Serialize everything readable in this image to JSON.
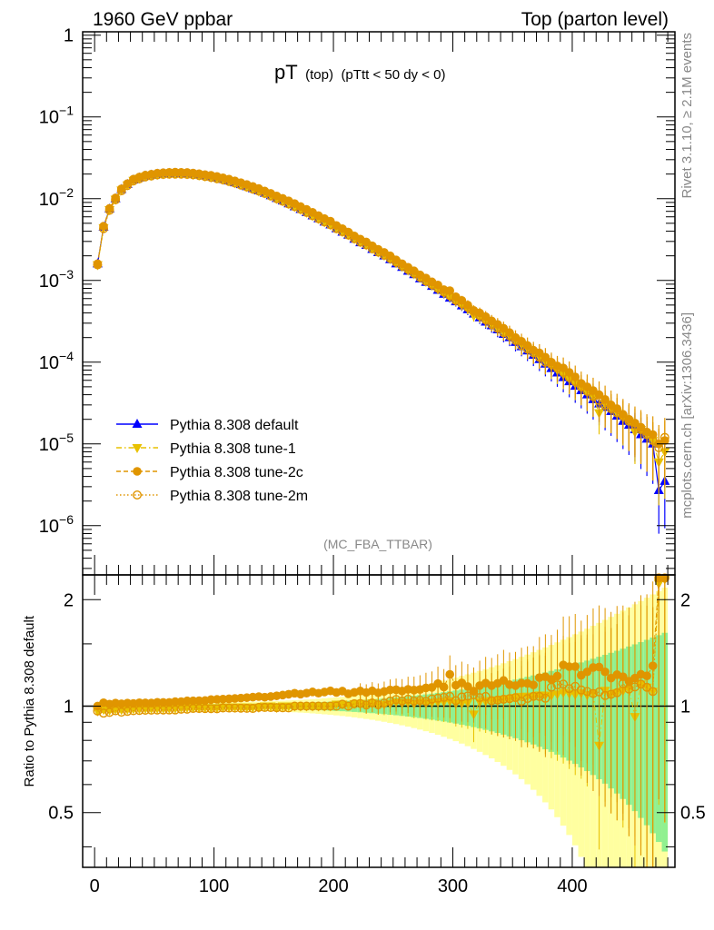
{
  "header": {
    "left": "1960 GeV ppbar",
    "right": "Top (parton level)"
  },
  "side_texts": {
    "rivet": "Rivet 3.1.10, ≥ 2.1M events",
    "mcplots": "mcplots.cern.ch [arXiv:1306.3436]"
  },
  "chart_data": [
    {
      "type": "scatter",
      "panel": "main",
      "title": {
        "main": "pT",
        "sub1": "(top)",
        "sub2": "(pTtt < 50 dy < 0)"
      },
      "watermark": "(MC_FBA_TTBAR)",
      "xlim": [
        -10,
        486
      ],
      "ylim": [
        2.5e-07,
        1.1
      ],
      "yscale": "log",
      "y_ticks": [
        {
          "value": 1,
          "label": "1"
        },
        {
          "value": 0.1,
          "base": "10",
          "exp": "−1"
        },
        {
          "value": 0.01,
          "base": "10",
          "exp": "−2"
        },
        {
          "value": 0.001,
          "base": "10",
          "exp": "−3"
        },
        {
          "value": 0.0001,
          "base": "10",
          "exp": "−4"
        },
        {
          "value": 1e-05,
          "base": "10",
          "exp": "−5"
        },
        {
          "value": 1e-06,
          "base": "10",
          "exp": "−6"
        }
      ],
      "legend_position": "bottom-left",
      "shape": {
        "x_start": 2.5,
        "x_step": 5,
        "n_bins": 96,
        "peak_x": 70,
        "peak_y": 0.0205
      },
      "x": [
        2.5,
        7.5,
        12.5,
        17.5,
        22.5,
        27.5,
        32.5,
        37.5,
        42.5,
        47.5,
        52.5,
        57.5,
        62.5,
        67.5,
        72.5,
        77.5,
        82.5,
        87.5,
        92.5,
        97.5,
        102.5,
        107.5,
        112.5,
        117.5,
        122.5,
        127.5,
        132.5,
        137.5,
        142.5,
        147.5,
        152.5,
        157.5,
        162.5,
        167.5,
        172.5,
        177.5,
        182.5,
        187.5,
        192.5,
        197.5,
        202.5,
        207.5,
        212.5,
        217.5,
        222.5,
        227.5,
        232.5,
        237.5,
        242.5,
        247.5,
        252.5,
        257.5,
        262.5,
        267.5,
        272.5,
        277.5,
        282.5,
        287.5,
        292.5,
        297.5,
        302.5,
        307.5,
        312.5,
        317.5,
        322.5,
        327.5,
        332.5,
        337.5,
        342.5,
        347.5,
        352.5,
        357.5,
        362.5,
        367.5,
        372.5,
        377.5,
        382.5,
        387.5,
        392.5,
        397.5,
        402.5,
        407.5,
        412.5,
        417.5,
        422.5,
        427.5,
        432.5,
        437.5,
        442.5,
        447.5,
        452.5,
        457.5,
        462.5,
        467.5,
        472.5,
        477.5
      ],
      "series": [
        {
          "name": "Pythia 8.308 default",
          "color": "#0000ff",
          "marker": "triangle-up",
          "line": "solid",
          "y": [
            0.0016,
            0.0045,
            0.0075,
            0.01,
            0.013,
            0.015,
            0.017,
            0.018,
            0.019,
            0.0195,
            0.02,
            0.0203,
            0.0205,
            0.0205,
            0.0204,
            0.0202,
            0.0199,
            0.0195,
            0.019,
            0.0185,
            0.0179,
            0.0172,
            0.0165,
            0.0157,
            0.0149,
            0.0141,
            0.0133,
            0.0125,
            0.0117,
            0.0109,
            0.0101,
            0.0094,
            0.0087,
            0.008,
            0.0074,
            0.0068,
            0.0062,
            0.0057,
            0.0052,
            0.0048,
            0.0043,
            0.0039,
            0.0036,
            0.0032,
            0.0029,
            0.0027,
            0.0024,
            0.0022,
            0.002,
            0.0018,
            0.0016,
            0.00145,
            0.0013,
            0.00118,
            0.00105,
            0.00095,
            0.00085,
            0.00076,
            0.00068,
            0.00061,
            0.00055,
            0.00049,
            0.00044,
            0.00039,
            0.00035,
            0.00031,
            0.00028,
            0.00025,
            0.00022,
            0.0002,
            0.000175,
            0.000155,
            0.000138,
            0.000122,
            0.000108,
            9.5e-05,
            8.4e-05,
            7.4e-05,
            6.5e-05,
            5.8e-05,
            5.1e-05,
            4.5e-05,
            4e-05,
            3.5e-05,
            3.1e-05,
            2.8e-05,
            2.5e-05,
            2.2e-05,
            1.9e-05,
            1.7e-05,
            1.5e-05,
            1.3e-05,
            1.15e-05,
            1e-05,
            2.7e-06,
            3.5e-06
          ]
        },
        {
          "name": "Pythia 8.308 tune-1",
          "color": "#e8c100",
          "marker": "triangle-down",
          "line": "dashdot",
          "y": [
            0.00155,
            0.0044,
            0.0073,
            0.0098,
            0.0127,
            0.0147,
            0.0167,
            0.0177,
            0.0187,
            0.0192,
            0.0197,
            0.02,
            0.0202,
            0.0202,
            0.0202,
            0.02,
            0.0197,
            0.0193,
            0.0188,
            0.0183,
            0.0177,
            0.0171,
            0.0164,
            0.0156,
            0.0148,
            0.014,
            0.0132,
            0.0124,
            0.0117,
            0.0109,
            0.01,
            0.0094,
            0.0087,
            0.008,
            0.0074,
            0.0068,
            0.0062,
            0.0057,
            0.0052,
            0.0048,
            0.00435,
            0.00395,
            0.00362,
            0.00325,
            0.00295,
            0.00272,
            0.00245,
            0.00222,
            0.00202,
            0.00183,
            0.00164,
            0.00148,
            0.00133,
            0.0012,
            0.00108,
            0.00097,
            0.00087,
            0.00078,
            0.0007,
            0.00063,
            0.00056,
            0.0005,
            0.00045,
            0.00037,
            0.00036,
            0.00032,
            0.00029,
            0.00026,
            0.00023,
            0.00021,
            0.000185,
            0.000165,
            0.000147,
            0.00013,
            0.000116,
            0.000102,
            9e-05,
            8e-05,
            7.1e-05,
            6.3e-05,
            5.5e-05,
            4.9e-05,
            4.3e-05,
            3.8e-05,
            2.4e-05,
            3.1e-05,
            2.7e-05,
            2.4e-05,
            2.1e-05,
            1.9e-05,
            1.4e-05,
            1.5e-05,
            1.3e-05,
            1.1e-05,
            6e-06,
            8e-06
          ]
        },
        {
          "name": "Pythia 8.308 tune-2c",
          "color": "#e09500",
          "marker": "circle-filled",
          "line": "dashed",
          "y": [
            0.0016,
            0.0046,
            0.0076,
            0.0102,
            0.0132,
            0.0153,
            0.0173,
            0.0184,
            0.0194,
            0.0199,
            0.0205,
            0.0208,
            0.021,
            0.0211,
            0.021,
            0.0209,
            0.0206,
            0.0202,
            0.0197,
            0.0193,
            0.0187,
            0.018,
            0.0173,
            0.0165,
            0.0157,
            0.0149,
            0.0141,
            0.0133,
            0.0124,
            0.0116,
            0.0108,
            0.0101,
            0.0094,
            0.0087,
            0.008,
            0.0074,
            0.0068,
            0.0062,
            0.0057,
            0.0053,
            0.0047,
            0.0043,
            0.0039,
            0.0035,
            0.0032,
            0.00295,
            0.00265,
            0.0024,
            0.0022,
            0.002,
            0.00178,
            0.0016,
            0.00145,
            0.00131,
            0.00117,
            0.00107,
            0.00096,
            0.00088,
            0.00077,
            0.00075,
            0.00063,
            0.00057,
            0.0005,
            0.00043,
            0.0004,
            0.00036,
            0.00032,
            0.00029,
            0.00026,
            0.00023,
            0.0002,
            0.00018,
            0.00016,
            0.00014,
            0.00013,
            0.000115,
            0.0001,
            9e-05,
            8.5e-05,
            7.5e-05,
            6.6e-05,
            5.5e-05,
            5e-05,
            4.5e-05,
            4e-05,
            3.5e-05,
            3e-05,
            2.7e-05,
            2.3e-05,
            2e-05,
            1.8e-05,
            1.6e-05,
            1.4e-05,
            1.3e-05,
            1e-05,
            1.1e-05
          ]
        },
        {
          "name": "Pythia 8.308 tune-2m",
          "color": "#e09500",
          "marker": "circle-open",
          "line": "dotted",
          "y": [
            0.00155,
            0.0043,
            0.0072,
            0.0097,
            0.0125,
            0.0145,
            0.0165,
            0.0175,
            0.0185,
            0.019,
            0.0195,
            0.0198,
            0.02,
            0.02,
            0.02,
            0.0198,
            0.0196,
            0.0192,
            0.0187,
            0.0182,
            0.0176,
            0.017,
            0.0163,
            0.0155,
            0.0147,
            0.0139,
            0.0131,
            0.0124,
            0.0116,
            0.0108,
            0.01,
            0.0093,
            0.0086,
            0.008,
            0.0074,
            0.0068,
            0.0062,
            0.0057,
            0.0052,
            0.0048,
            0.0043,
            0.00395,
            0.0036,
            0.00325,
            0.00295,
            0.00272,
            0.00245,
            0.00222,
            0.00204,
            0.00186,
            0.00167,
            0.0015,
            0.00136,
            0.00122,
            0.00109,
            0.00098,
            0.00089,
            0.0008,
            0.00072,
            0.00065,
            0.00057,
            0.00052,
            0.00047,
            0.00042,
            0.00037,
            0.00033,
            0.00029,
            0.00026,
            0.00023,
            0.00021,
            0.000185,
            0.00016,
            0.000145,
            0.00013,
            0.000115,
            0.0001,
            9.5e-05,
            8.5e-05,
            7.5e-05,
            6.5e-05,
            5.8e-05,
            5e-05,
            4.4e-05,
            3.8e-05,
            3.4e-05,
            3e-05,
            2.7e-05,
            2.4e-05,
            2.2e-05,
            1.9e-05,
            1.7e-05,
            1.5e-05,
            1.3e-05,
            1.1e-05,
            9e-06,
            1.2e-05
          ]
        }
      ]
    },
    {
      "type": "scatter",
      "panel": "ratio",
      "ylabel": "Ratio to Pythia 8.308 default",
      "xlim": [
        -10,
        486
      ],
      "ylim": [
        0.35,
        2.35
      ],
      "yscale": "log",
      "y_ticks": [
        {
          "value": 0.5,
          "label": "0.5"
        },
        {
          "value": 1,
          "label": "1"
        },
        {
          "value": 2,
          "label": "2"
        }
      ],
      "x_ticks": [
        {
          "value": 0,
          "label": "0"
        },
        {
          "value": 100,
          "label": "100"
        },
        {
          "value": 200,
          "label": "200"
        },
        {
          "value": 300,
          "label": "300"
        },
        {
          "value": 400,
          "label": "400"
        }
      ],
      "band_colors": {
        "inner": "#90f090",
        "outer": "#ffffa0"
      },
      "reference_line": 1.0
    }
  ]
}
